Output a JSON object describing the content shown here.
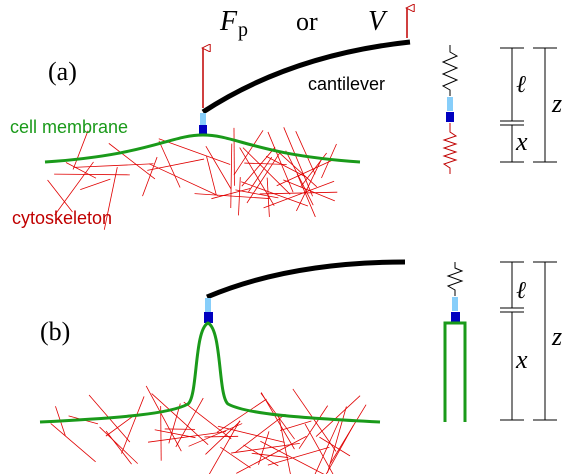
{
  "panel_a": {
    "label": "(a)",
    "force": {
      "symbol": "F",
      "subscript": "p"
    },
    "or": "or",
    "velocity": "V",
    "cantilever": "cantilever",
    "membrane": "cell membrane",
    "cytoskeleton": "cytoskeleton",
    "dims": {
      "l": "ℓ",
      "x": "x",
      "z": "z"
    }
  },
  "panel_b": {
    "label": "(b)",
    "dims": {
      "l": "ℓ",
      "x": "x",
      "z": "z"
    }
  }
}
